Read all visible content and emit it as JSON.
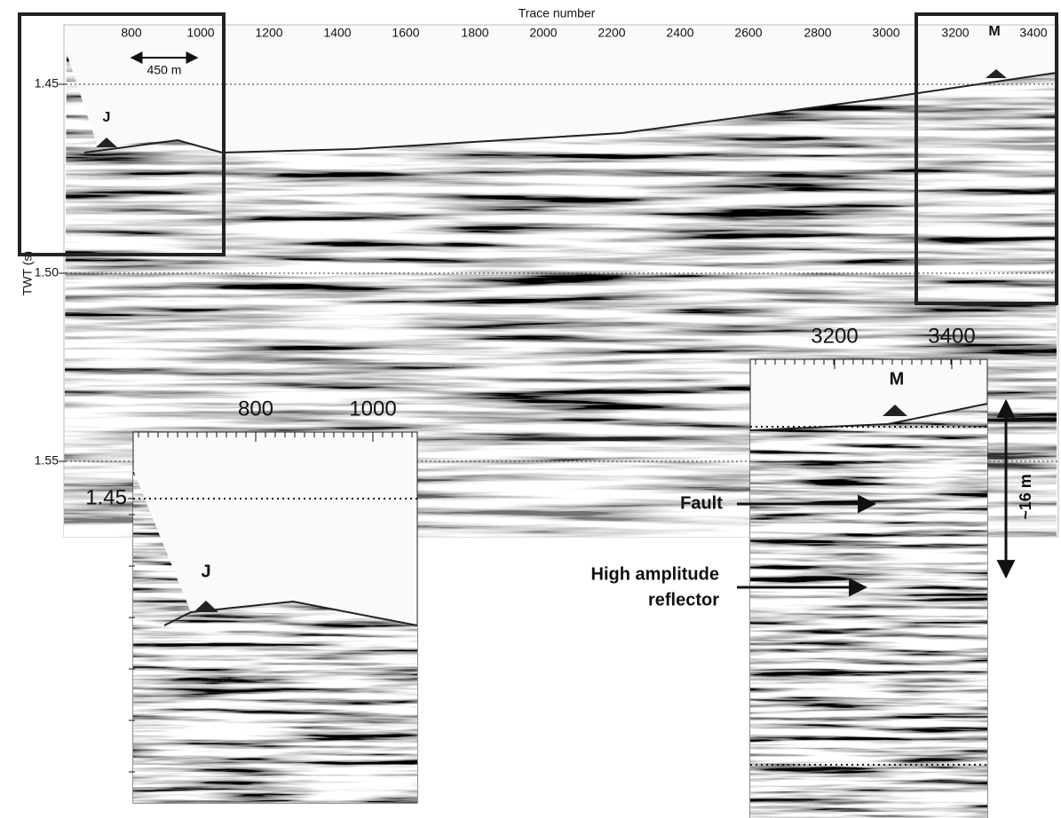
{
  "main": {
    "x_axis_title": "Trace number",
    "x_ticks": [
      "800",
      "1000",
      "1200",
      "1400",
      "1600",
      "1800",
      "2000",
      "2200",
      "2400",
      "2600",
      "2800",
      "3000",
      "3200",
      "3400"
    ],
    "y_axis_title": "TWT (s)",
    "y_ticks": [
      "1.45",
      "1.50",
      "1.55"
    ],
    "marker_j": "J",
    "marker_m": "M",
    "scale_label": "450 m"
  },
  "left_inset": {
    "x_ticks": [
      "800",
      "1000"
    ],
    "y_tick": "1.45",
    "marker_j": "J"
  },
  "right_inset": {
    "x_ticks": [
      "3200",
      "3400"
    ],
    "marker_m": "M",
    "fault_label": "Fault",
    "reflector_label": [
      "High amplitude",
      "reflector"
    ],
    "thickness_label": "~16 m"
  }
}
